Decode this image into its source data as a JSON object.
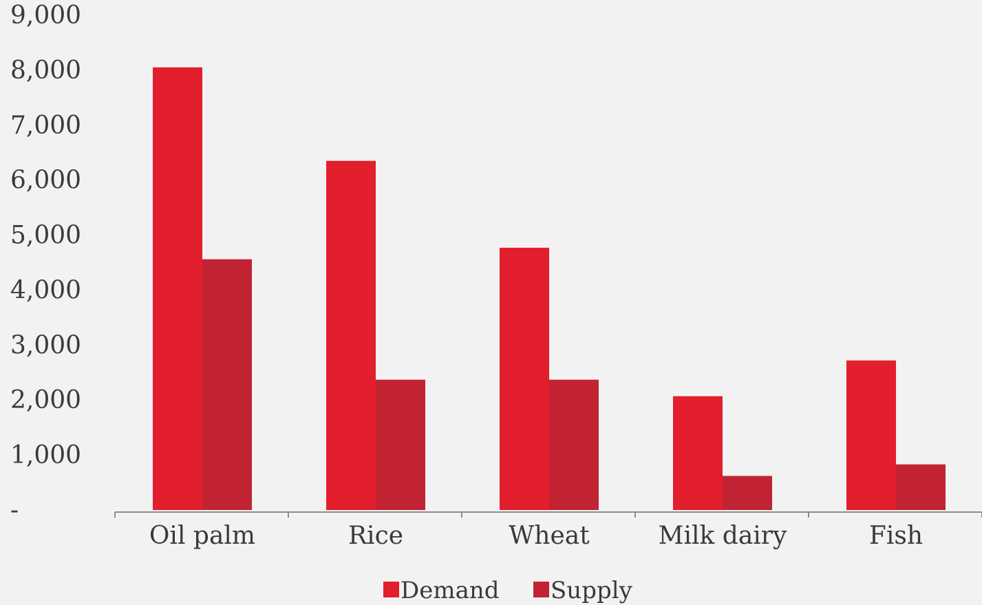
{
  "chart_data": {
    "type": "bar",
    "categories": [
      "Oil palm",
      "Rice",
      "Wheat",
      "Milk dairy",
      "Fish"
    ],
    "series": [
      {
        "name": "Demand",
        "values": [
          8050,
          6350,
          4770,
          2070,
          2720
        ],
        "color": "#e31e2d"
      },
      {
        "name": "Supply",
        "values": [
          4560,
          2370,
          2370,
          620,
          830
        ],
        "color": "#c12333"
      }
    ],
    "ylim": [
      0,
      9000
    ],
    "yticks": [
      0,
      1000,
      2000,
      3000,
      4000,
      5000,
      6000,
      7000,
      8000,
      9000
    ],
    "ytick_labels": [
      "-",
      "1,000",
      "2,000",
      "3,000",
      "4,000",
      "5,000",
      "6,000",
      "7,000",
      "8,000",
      "9,000"
    ],
    "grid": false,
    "legend_position": "bottom-center",
    "title": "",
    "xlabel": "",
    "ylabel": ""
  }
}
